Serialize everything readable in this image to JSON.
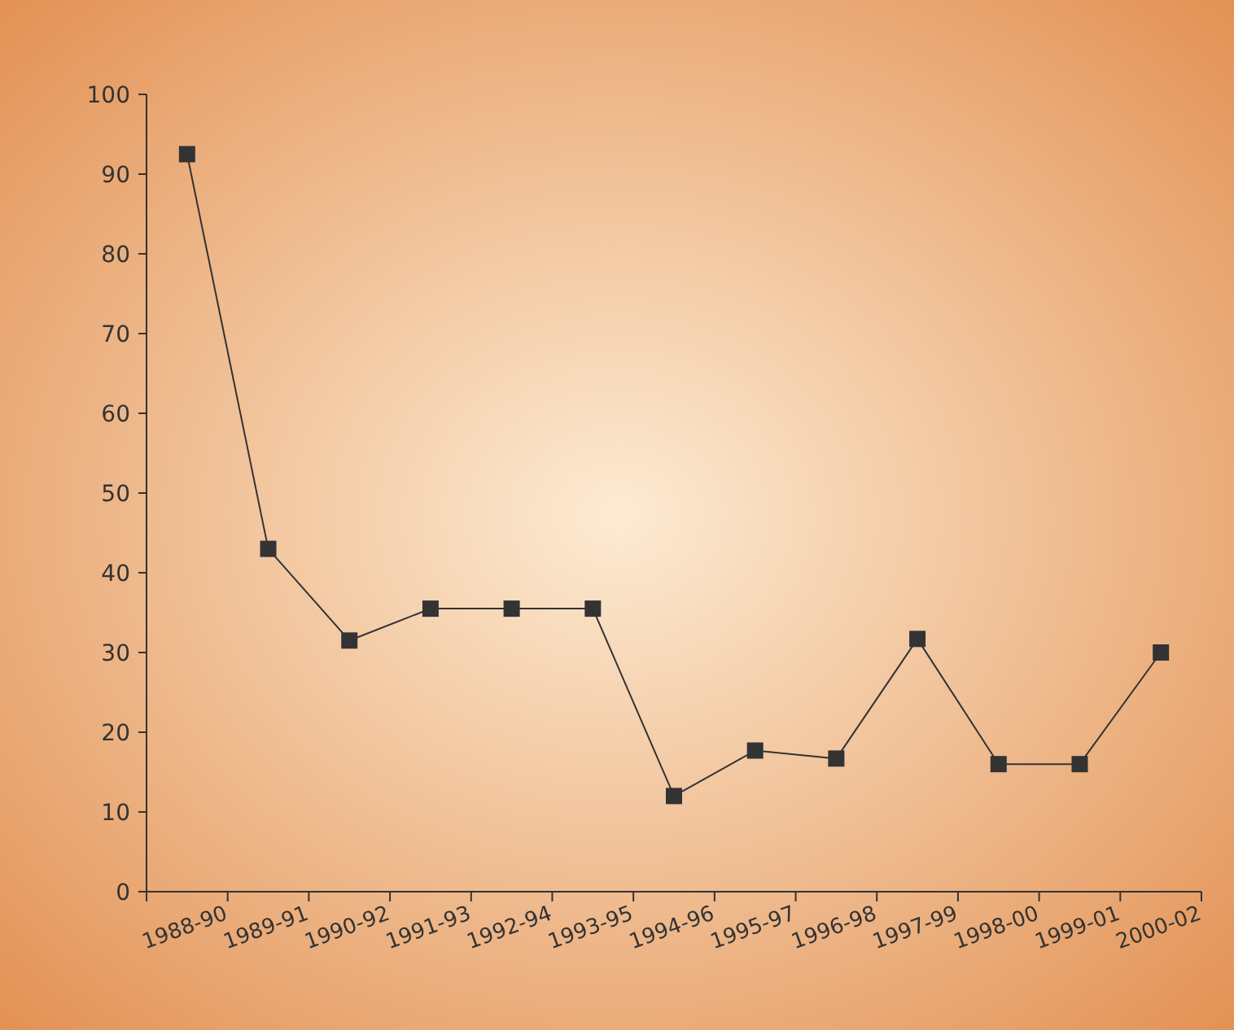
{
  "chart_data": {
    "type": "line",
    "categories": [
      "1988-90",
      "1989-91",
      "1990-92",
      "1991-93",
      "1992-94",
      "1993-95",
      "1994-96",
      "1995-97",
      "1996-98",
      "1997-99",
      "1998-00",
      "1999-01",
      "2000-02"
    ],
    "series": [
      {
        "color": "#333333",
        "values": [
          92.5,
          43,
          31.5,
          35.5,
          35.5,
          35.5,
          12,
          17.7,
          16.7,
          31.7,
          16,
          16,
          30
        ]
      }
    ],
    "ylim": [
      0,
      100
    ],
    "yticks": [
      0,
      10,
      20,
      30,
      40,
      50,
      60,
      70,
      80,
      90,
      100
    ],
    "grid": false,
    "marker": "square",
    "line_style": "solid"
  }
}
